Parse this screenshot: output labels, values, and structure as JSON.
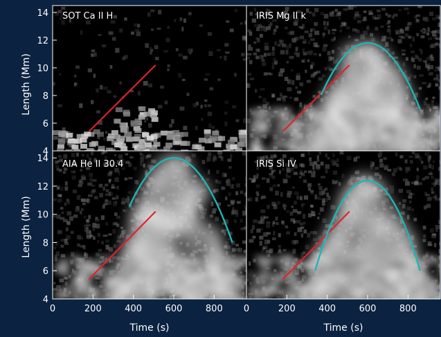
{
  "figure": {
    "background": "#0b2240",
    "panel_background": "#000000",
    "axis_color": "#ffffff",
    "fit_line_color": "#e0232a",
    "arc_color": "#1fb5b5"
  },
  "chart_data": [
    {
      "type": "heatmap",
      "title": "SOT Ca II H",
      "xlabel": "",
      "ylabel": "Length (Mm)",
      "xlim": [
        0,
        960
      ],
      "ylim": [
        4,
        14.5
      ],
      "xticks": [],
      "yticks": [
        4,
        6,
        8,
        10,
        12,
        14
      ],
      "emission": "faint low-lying emission near 4–7 Mm",
      "fit_line": {
        "x": [
          180,
          510
        ],
        "y": [
          5.4,
          10.2
        ]
      },
      "arc": null
    },
    {
      "type": "heatmap",
      "title": "IRIS Mg II k",
      "xlabel": "",
      "ylabel": "",
      "xlim": [
        0,
        960
      ],
      "ylim": [
        4,
        14.5
      ],
      "xticks": [],
      "yticks": [],
      "emission": "bright rising emission under parabolic arc",
      "fit_line": {
        "x": [
          180,
          510
        ],
        "y": [
          5.4,
          10.2
        ]
      },
      "arc": {
        "apex_time": 600,
        "apex_length": 11.8,
        "start_time": 370,
        "end_time": 860,
        "end_length": 7.0
      }
    },
    {
      "type": "heatmap",
      "title": "AIA He II 30.4",
      "xlabel": "Time (s)",
      "ylabel": "Length (Mm)",
      "xlim": [
        0,
        960
      ],
      "ylim": [
        4,
        14.5
      ],
      "xticks": [
        0,
        200,
        400,
        600,
        800
      ],
      "yticks": [
        4,
        6,
        8,
        10,
        12,
        14
      ],
      "emission": "bright broad emission under parabolic arc",
      "fit_line": {
        "x": [
          180,
          510
        ],
        "y": [
          5.4,
          10.2
        ]
      },
      "arc": {
        "apex_time": 600,
        "apex_length": 14.0,
        "start_time": 380,
        "end_time": 890,
        "end_length": 8.0
      }
    },
    {
      "type": "heatmap",
      "title": "IRIS Si IV",
      "xlabel": "Time (s)",
      "ylabel": "",
      "xlim": [
        0,
        960
      ],
      "ylim": [
        4,
        14.5
      ],
      "xticks": [
        0,
        200,
        400,
        600,
        800
      ],
      "yticks": [],
      "emission": "emission under parabolic arc, bright core near 8 Mm",
      "fit_line": {
        "x": [
          180,
          510
        ],
        "y": [
          5.4,
          10.2
        ]
      },
      "arc": {
        "apex_time": 600,
        "apex_length": 12.4,
        "start_time": 340,
        "end_time": 860,
        "end_length": 6.0
      }
    }
  ]
}
